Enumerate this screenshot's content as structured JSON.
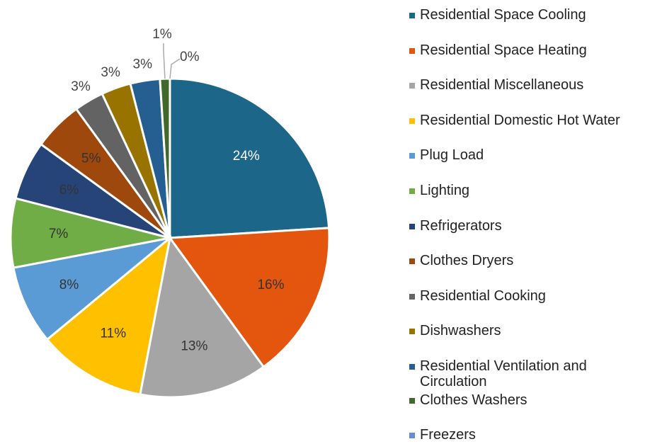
{
  "chart_data": {
    "type": "pie",
    "categories": [
      "Residential Space Cooling",
      "Residential Space Heating",
      "Residential Miscellaneous",
      "Residential Domestic Hot Water",
      "Plug Load",
      "Lighting",
      "Refrigerators",
      "Clothes Dryers",
      "Residential Cooking",
      "Dishwashers",
      "Residential Ventilation and Circulation",
      "Clothes Washers",
      "Freezers"
    ],
    "values": [
      24,
      16,
      13,
      11,
      8,
      7,
      6,
      5,
      3,
      3,
      3,
      1,
      0
    ],
    "value_labels": [
      "24%",
      "16%",
      "13%",
      "11%",
      "8%",
      "7%",
      "6%",
      "5%",
      "3%",
      "3%",
      "3%",
      "1%",
      "0%"
    ],
    "colors": [
      "#1b6689",
      "#e4560d",
      "#a5a5a5",
      "#ffc000",
      "#5b9bd5",
      "#70ad47",
      "#264478",
      "#9e480e",
      "#636363",
      "#997300",
      "#255e91",
      "#43682b",
      "#698ed0"
    ],
    "legend": "right"
  }
}
